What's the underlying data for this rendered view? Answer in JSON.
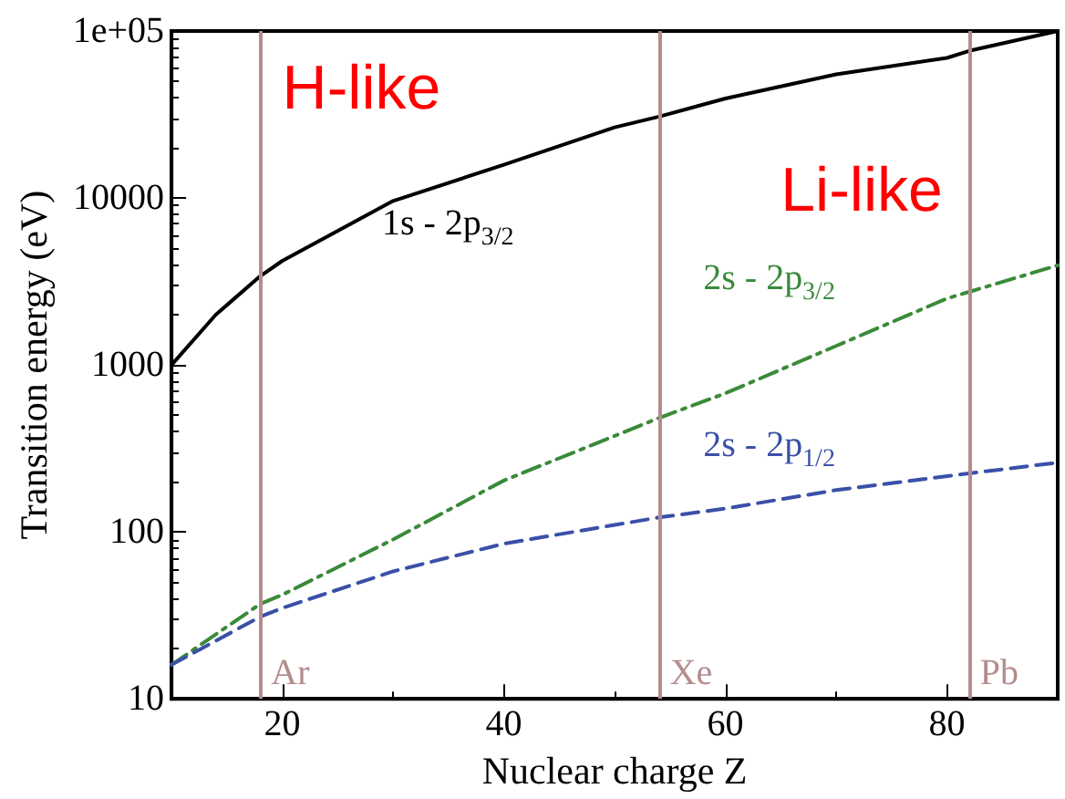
{
  "chart_data": {
    "type": "line",
    "xlabel": "Nuclear charge Z",
    "ylabel": "Transition energy (eV)",
    "xlim": [
      10,
      90
    ],
    "xticks": [
      20,
      40,
      60,
      80
    ],
    "ylim": [
      10,
      100000
    ],
    "yticks": [
      10,
      100,
      1000,
      10000,
      {
        "value": 100000,
        "label": "1e+05"
      }
    ],
    "log": "y",
    "grid": false,
    "legend": false,
    "marker": "none",
    "annotations": [
      "H-like",
      "Li-like"
    ],
    "ref_lines": [
      {
        "axis": "x",
        "value": 18,
        "label": "Ar",
        "color": "#b48c8c"
      },
      {
        "axis": "x",
        "value": 54,
        "label": "Xe",
        "color": "#b48c8c"
      },
      {
        "axis": "x",
        "value": 82,
        "label": "Pb",
        "color": "#b48c8c"
      }
    ],
    "series": [
      {
        "name": "1s - 2p$_{3/2}$",
        "color": "#000000",
        "line_style": "solid",
        "x": [
          10,
          14,
          18,
          20,
          30,
          40,
          50,
          54,
          60,
          70,
          80,
          82,
          90
        ],
        "values": [
          1000,
          2000,
          3400,
          4200,
          9600,
          15800,
          26500,
          30700,
          39400,
          55000,
          69000,
          76000,
          100000
        ]
      },
      {
        "name": "2s - 2p$_{3/2}$",
        "color": "#3a8a3a",
        "line_style": "dashdot",
        "x": [
          10,
          18,
          20,
          30,
          40,
          54,
          60,
          70,
          80,
          82,
          90
        ],
        "values": [
          16,
          37,
          42,
          90,
          203,
          481,
          676,
          1300,
          2500,
          2740,
          3950
        ]
      },
      {
        "name": "2s - 2p$_{1/2}$",
        "color": "#3a50a8",
        "line_style": "dashed",
        "x": [
          10,
          18,
          20,
          30,
          40,
          54,
          60,
          70,
          82,
          90
        ],
        "values": [
          16,
          31,
          35,
          58,
          85,
          122,
          138,
          178,
          224,
          260
        ]
      }
    ]
  }
}
